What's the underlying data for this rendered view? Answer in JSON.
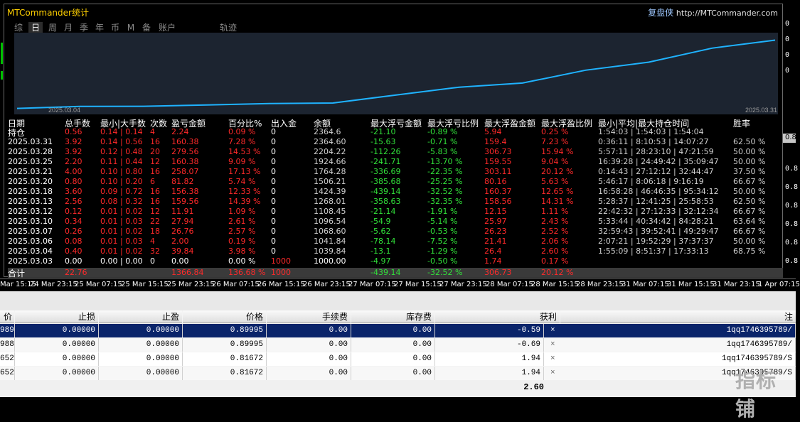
{
  "window": {
    "title": "MTCommander统计",
    "brand": "复盘侠",
    "url": "http://MTCommander.com"
  },
  "tabs": [
    "综",
    "日",
    "周",
    "月",
    "季",
    "年",
    "币",
    "M",
    "备",
    "账户",
    "轨迹"
  ],
  "chart": {
    "x_start_label": "2025.03.04",
    "x_end_label": "2025.03.31",
    "chart_data": {
      "type": "line",
      "title": "",
      "x": [
        "2025.03.03",
        "2025.03.04",
        "2025.03.06",
        "2025.03.07",
        "2025.03.10",
        "2025.03.12",
        "2025.03.13",
        "2025.03.18",
        "2025.03.20",
        "2025.03.21",
        "2025.03.25",
        "2025.03.28",
        "2025.03.31"
      ],
      "values": [
        1000.0,
        1039.84,
        1041.84,
        1068.6,
        1096.54,
        1108.45,
        1268.01,
        1424.39,
        1506.21,
        1764.28,
        1924.66,
        2204.22,
        2364.6
      ],
      "ylim": [
        980,
        2400
      ]
    }
  },
  "stats": {
    "headers": [
      "日期",
      "总手数",
      "最小|大手数",
      "次数",
      "盈亏金额",
      "百分比%",
      "出入金",
      "余额",
      "最大浮亏金额",
      "最大浮亏比例",
      "最大浮盈金额",
      "最大浮盈比例",
      "最小|平均|最大持仓时间",
      "胜率"
    ],
    "rows": [
      {
        "date": "持仓",
        "lots": "0.56",
        "minmax": "0.14 | 0.14",
        "count": "4",
        "pnl": "2.24",
        "pct": "0.09 %",
        "io": "0",
        "bal": "2364.6",
        "mfl": "-21.10",
        "mflp": "-0.89 %",
        "mfp": "5.94",
        "mfpp": "0.25 %",
        "hold": "1:54:03 | 1:54:03 | 1:54:04",
        "win": ""
      },
      {
        "date": "2025.03.31",
        "lots": "3.92",
        "minmax": "0.14 | 0.56",
        "count": "16",
        "pnl": "160.38",
        "pct": "7.28 %",
        "io": "0",
        "bal": "2364.60",
        "mfl": "-15.63",
        "mflp": "-0.71 %",
        "mfp": "159.4",
        "mfpp": "7.23 %",
        "hold": "0:36:11 | 8:10:53 | 14:07:27",
        "win": "62.50 %"
      },
      {
        "date": "2025.03.28",
        "lots": "3.92",
        "minmax": "0.12 | 0.48",
        "count": "20",
        "pnl": "279.56",
        "pct": "14.53 %",
        "io": "0",
        "bal": "2204.22",
        "mfl": "-112.26",
        "mflp": "-5.83 %",
        "mfp": "306.73",
        "mfpp": "15.94 %",
        "hold": "5:57:11 | 28:23:10 | 47:21:59",
        "win": "50.00 %"
      },
      {
        "date": "2025.03.25",
        "lots": "2.20",
        "minmax": "0.11 | 0.44",
        "count": "12",
        "pnl": "160.38",
        "pct": "9.09 %",
        "io": "0",
        "bal": "1924.66",
        "mfl": "-241.71",
        "mflp": "-13.70 %",
        "mfp": "159.55",
        "mfpp": "9.04 %",
        "hold": "16:39:28 | 24:49:42 | 35:09:47",
        "win": "50.00 %"
      },
      {
        "date": "2025.03.21",
        "lots": "4.00",
        "minmax": "0.10 | 0.80",
        "count": "16",
        "pnl": "258.07",
        "pct": "17.13 %",
        "io": "0",
        "bal": "1764.28",
        "mfl": "-336.69",
        "mflp": "-22.35 %",
        "mfp": "303.11",
        "mfpp": "20.12 %",
        "hold": "0:14:43 | 27:12:12 | 32:44:47",
        "win": "37.50 %"
      },
      {
        "date": "2025.03.20",
        "lots": "0.80",
        "minmax": "0.10 | 0.20",
        "count": "6",
        "pnl": "81.82",
        "pct": "5.74 %",
        "io": "0",
        "bal": "1506.21",
        "mfl": "-385.68",
        "mflp": "-25.25 %",
        "mfp": "80.16",
        "mfpp": "5.63 %",
        "hold": "5:46:17 | 8:06:18 | 9:16:19",
        "win": "66.67 %"
      },
      {
        "date": "2025.03.18",
        "lots": "3.60",
        "minmax": "0.09 | 0.72",
        "count": "16",
        "pnl": "156.38",
        "pct": "12.33 %",
        "io": "0",
        "bal": "1424.39",
        "mfl": "-439.14",
        "mflp": "-32.52 %",
        "mfp": "160.37",
        "mfpp": "12.65 %",
        "hold": "16:58:28 | 46:46:35 | 95:34:12",
        "win": "50.00 %"
      },
      {
        "date": "2025.03.13",
        "lots": "2.56",
        "minmax": "0.08 | 0.32",
        "count": "16",
        "pnl": "159.56",
        "pct": "14.39 %",
        "io": "0",
        "bal": "1268.01",
        "mfl": "-358.63",
        "mflp": "-32.35 %",
        "mfp": "158.56",
        "mfpp": "14.31 %",
        "hold": "5:28:37 | 12:41:25 | 25:58:53",
        "win": "62.50 %"
      },
      {
        "date": "2025.03.12",
        "lots": "0.12",
        "minmax": "0.01 | 0.02",
        "count": "12",
        "pnl": "11.91",
        "pct": "1.09 %",
        "io": "0",
        "bal": "1108.45",
        "mfl": "-21.14",
        "mflp": "-1.91 %",
        "mfp": "12.15",
        "mfpp": "1.11 %",
        "hold": "22:42:32 | 27:12:33 | 32:12:34",
        "win": "66.67 %"
      },
      {
        "date": "2025.03.10",
        "lots": "0.34",
        "minmax": "0.01 | 0.03",
        "count": "22",
        "pnl": "27.94",
        "pct": "2.61 %",
        "io": "0",
        "bal": "1096.54",
        "mfl": "-54.9",
        "mflp": "-5.14 %",
        "mfp": "25.97",
        "mfpp": "2.43 %",
        "hold": "5:33:44 | 40:34:42 | 84:28:21",
        "win": "63.64 %"
      },
      {
        "date": "2025.03.07",
        "lots": "0.26",
        "minmax": "0.01 | 0.02",
        "count": "18",
        "pnl": "26.76",
        "pct": "2.57 %",
        "io": "0",
        "bal": "1068.60",
        "mfl": "-5.62",
        "mflp": "-0.53 %",
        "mfp": "26.23",
        "mfpp": "2.52 %",
        "hold": "32:59:43 | 39:52:41 | 49:29:47",
        "win": "66.67 %"
      },
      {
        "date": "2025.03.06",
        "lots": "0.08",
        "minmax": "0.01 | 0.03",
        "count": "4",
        "pnl": "2.00",
        "pct": "0.19 %",
        "io": "0",
        "bal": "1041.84",
        "mfl": "-78.14",
        "mflp": "-7.52 %",
        "mfp": "21.41",
        "mfpp": "2.06 %",
        "hold": "2:07:21 | 19:52:29 | 37:37:37",
        "win": "50.00 %"
      },
      {
        "date": "2025.03.04",
        "lots": "0.40",
        "minmax": "0.01 | 0.02",
        "count": "32",
        "pnl": "39.84",
        "pct": "3.98 %",
        "io": "0",
        "bal": "1039.84",
        "mfl": "-13.1",
        "mflp": "-1.29 %",
        "mfp": "26.4",
        "mfpp": "2.60 %",
        "hold": "1:55:09 | 8:51:37 | 17:33:13",
        "win": "68.75 %"
      },
      {
        "date": "2025.03.03",
        "lots": "0.00",
        "minmax": "0.00 | 0.00",
        "count": "0",
        "pnl": "0.00",
        "pct": "0.00 %",
        "io": "1000",
        "bal": "1000.00",
        "mfl": "-4.97",
        "mflp": "-0.50 %",
        "mfp": "1.74",
        "mfpp": "0.17 %",
        "hold": "",
        "win": ""
      }
    ],
    "total": {
      "label": "合计",
      "lots": "22.76",
      "pnl": "1366.84",
      "pct": "136.68 %",
      "io": "1000",
      "mfl": "-439.14",
      "mflp": "-32.52 %",
      "mfp": "306.73",
      "mfpp": "20.12 %"
    }
  },
  "right_scale": [
    "0",
    "0",
    "0",
    "0",
    "0.8",
    "0.8",
    "0.8",
    "0.8",
    "0.8",
    "0.8",
    "0.8"
  ],
  "time_axis": [
    "Mar 15:15",
    "24 Mar 23:15",
    "25 Mar 07:15",
    "25 Mar 15:15",
    "25 Mar 23:15",
    "26 Mar 07:15",
    "26 Mar 15:15",
    "26 Mar 23:15",
    "27 Mar 07:15",
    "27 Mar 15:15",
    "27 Mar 23:15",
    "28 Mar 07:15",
    "28 Mar 15:15",
    "28 Mar 23:15",
    "31 Mar 07:15",
    "31 Mar 15:15",
    "31 Mar 23:15",
    "1 Apr 07:15"
  ],
  "grid": {
    "headers": [
      "价格",
      "止损",
      "止盈",
      "价格",
      "手续费",
      "库存费",
      "获利",
      "注"
    ],
    "rows": [
      {
        "c0": "989",
        "sl": "0.00000",
        "tp": "0.00000",
        "price": "0.89995",
        "fee": "0.00",
        "swap": "0.00",
        "profit": "-0.59",
        "note": "1qq1746395789/"
      },
      {
        "c0": "988",
        "sl": "0.00000",
        "tp": "0.00000",
        "price": "0.89995",
        "fee": "0.00",
        "swap": "0.00",
        "profit": "-0.69",
        "note": "1qq1746395789/"
      },
      {
        "c0": "652",
        "sl": "0.00000",
        "tp": "0.00000",
        "price": "0.81672",
        "fee": "0.00",
        "swap": "0.00",
        "profit": "1.94",
        "note": "1qq1746395789/S"
      },
      {
        "c0": "652",
        "sl": "0.00000",
        "tp": "0.00000",
        "price": "0.81672",
        "fee": "0.00",
        "swap": "0.00",
        "profit": "1.94",
        "note": "1qq1746395789/S"
      }
    ],
    "total_profit": "2.60",
    "close_glyph": "×"
  },
  "watermark": "指标铺",
  "colors": {
    "line": "#1fb3ff",
    "chart_bg": "#1c2430",
    "negative": "#ff2a2a",
    "positive": "#31e03a",
    "selected": "#0a246a",
    "title": "#ffd000"
  }
}
